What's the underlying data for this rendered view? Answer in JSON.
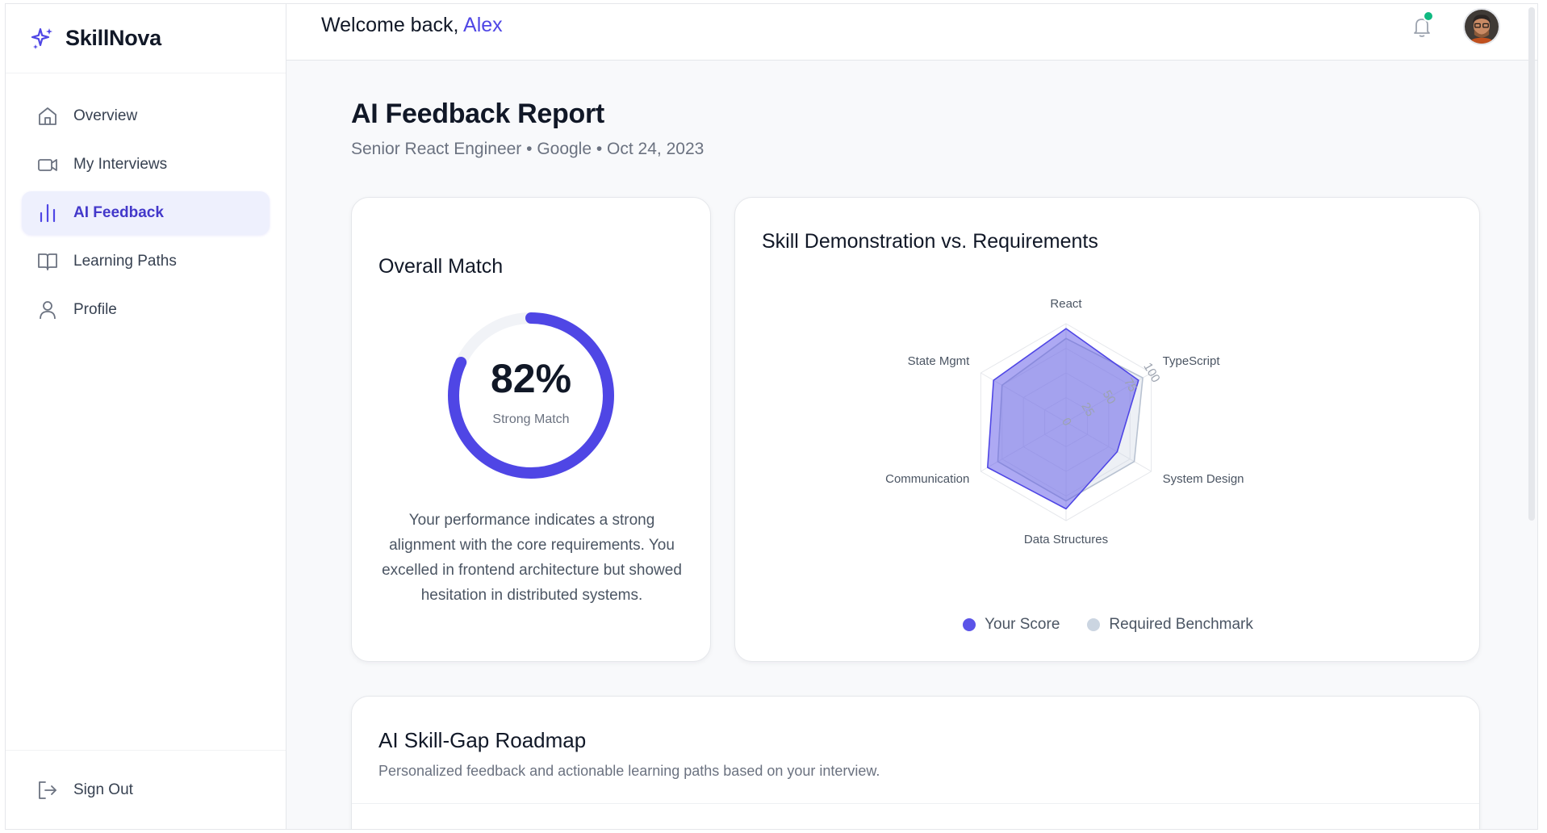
{
  "brand": {
    "name": "SkillNova"
  },
  "sidebar": {
    "items": [
      {
        "label": "Overview",
        "icon": "home-icon"
      },
      {
        "label": "My Interviews",
        "icon": "video-icon"
      },
      {
        "label": "AI Feedback",
        "icon": "bar-chart-icon",
        "active": true
      },
      {
        "label": "Learning Paths",
        "icon": "book-icon"
      },
      {
        "label": "Profile",
        "icon": "user-icon"
      }
    ],
    "signout_label": "Sign Out"
  },
  "header": {
    "greeting": "Welcome back,",
    "user_name": "Alex"
  },
  "report": {
    "title": "AI Feedback Report",
    "subtitle": "Senior React Engineer • Google • Oct 24, 2023"
  },
  "overall": {
    "title": "Overall Match",
    "percent_label": "82%",
    "percent_value": 82,
    "match_label": "Strong Match",
    "description": "Your performance indicates a strong alignment with the core requirements. You excelled in frontend architecture but showed hesitation in distributed systems."
  },
  "skills": {
    "title": "Skill Demonstration vs. Requirements",
    "legend": {
      "your_score": "Your Score",
      "benchmark": "Required Benchmark"
    }
  },
  "chart_data": {
    "type": "radar",
    "title": "Skill Demonstration vs. Requirements",
    "categories": [
      "React",
      "TypeScript",
      "System Design",
      "Data Structures",
      "Communication",
      "State Mgmt"
    ],
    "radial_ticks": [
      "0",
      "25",
      "50",
      "75",
      "100"
    ],
    "rlim": [
      0,
      100
    ],
    "series": [
      {
        "name": "Your Score",
        "values": [
          95,
          85,
          60,
          88,
          92,
          85
        ],
        "color": "#5b54e8"
      },
      {
        "name": "Required Benchmark",
        "values": [
          85,
          90,
          80,
          80,
          80,
          75
        ],
        "color": "#cbd5e1"
      }
    ]
  },
  "roadmap": {
    "title": "AI Skill-Gap Roadmap",
    "subtitle": "Personalized feedback and actionable learning paths based on your interview."
  },
  "colors": {
    "accent": "#4f46e5",
    "status_online": "#10b981"
  }
}
